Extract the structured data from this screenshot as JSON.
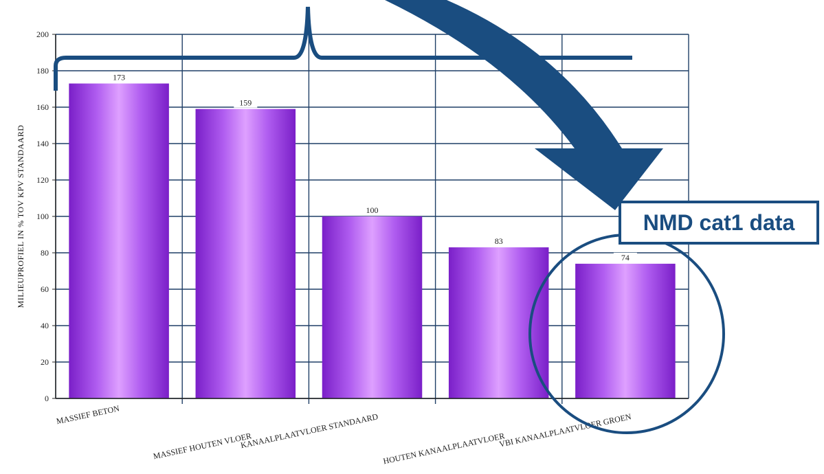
{
  "chart_data": {
    "type": "bar",
    "categories": [
      "MASSIEF BETON",
      "MASSIEF HOUTEN VLOER",
      "KANAALPLAATVLOER STANDAARD",
      "HOUTEN KANAALPLAATVLOER",
      "VBI KANAALPLAATVLOER GROEN"
    ],
    "values": [
      173,
      159,
      100,
      83,
      74
    ],
    "data_labels": [
      "173",
      "159",
      "100",
      "83",
      "74"
    ],
    "title": "",
    "xlabel": "",
    "ylabel": "MILIEUPROFIEL IN % TOV KPV STANDAARD",
    "ylim": [
      0,
      200
    ],
    "yticks": [
      "0",
      "20",
      "40",
      "60",
      "80",
      "100",
      "120",
      "140",
      "160",
      "180",
      "200"
    ],
    "grid": true,
    "bar_color": "#a64fe6",
    "grid_color": "#1f3f66"
  },
  "annotation": {
    "callout_text": "NMD cat1 data",
    "accent_color": "#1a4d80"
  }
}
